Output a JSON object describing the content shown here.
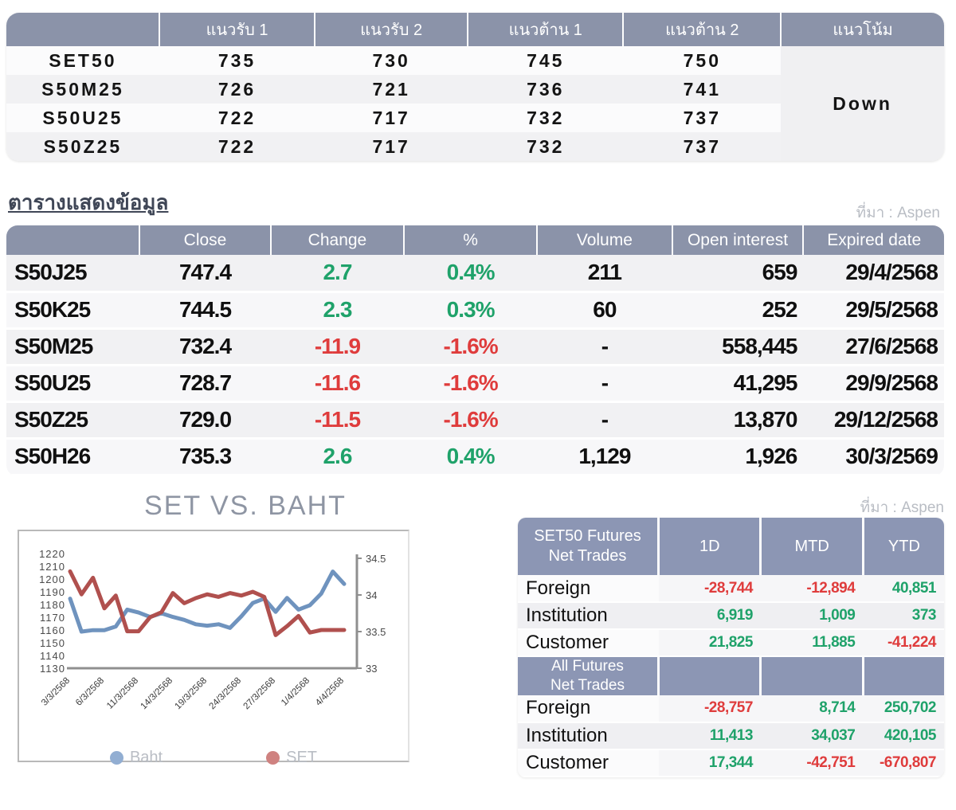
{
  "source_label": "ที่มา : Aspen",
  "colors": {
    "positive": "#1fa26a",
    "negative": "#df3c3c",
    "header_gray": "#8b93a9",
    "header_blue": "#8c96b4"
  },
  "levels_table": {
    "headers": [
      "",
      "แนวรับ 1",
      "แนวรับ 2",
      "แนวต้าน 1",
      "แนวต้าน 2",
      "แนวโน้ม"
    ],
    "trend": "Down",
    "rows": [
      {
        "name": "SET50",
        "s1": "735",
        "s2": "730",
        "r1": "745",
        "r2": "750"
      },
      {
        "name": "S50M25",
        "s1": "726",
        "s2": "721",
        "r1": "736",
        "r2": "741"
      },
      {
        "name": "S50U25",
        "s1": "722",
        "s2": "717",
        "r1": "732",
        "r2": "737"
      },
      {
        "name": "S50Z25",
        "s1": "722",
        "s2": "717",
        "r1": "732",
        "r2": "737"
      }
    ]
  },
  "data_table": {
    "title": "ตารางแสดงข้อมูล",
    "headers": [
      "",
      "Close",
      "Change",
      "%",
      "Volume",
      "Open interest",
      "Expired date"
    ],
    "rows": [
      {
        "name": "S50J25",
        "close": "747.4",
        "change": "2.7",
        "pct": "0.4%",
        "volume": "211",
        "oi": "659",
        "expiry": "29/4/2568"
      },
      {
        "name": "S50K25",
        "close": "744.5",
        "change": "2.3",
        "pct": "0.3%",
        "volume": "60",
        "oi": "252",
        "expiry": "29/5/2568"
      },
      {
        "name": "S50M25",
        "close": "732.4",
        "change": "-11.9",
        "pct": "-1.6%",
        "volume": "-",
        "oi": "558,445",
        "expiry": "27/6/2568"
      },
      {
        "name": "S50U25",
        "close": "728.7",
        "change": "-11.6",
        "pct": "-1.6%",
        "volume": "-",
        "oi": "41,295",
        "expiry": "29/9/2568"
      },
      {
        "name": "S50Z25",
        "close": "729.0",
        "change": "-11.5",
        "pct": "-1.6%",
        "volume": "-",
        "oi": "13,870",
        "expiry": "29/12/2568"
      },
      {
        "name": "S50H26",
        "close": "735.3",
        "change": "2.6",
        "pct": "0.4%",
        "volume": "1,129",
        "oi": "1,926",
        "expiry": "30/3/2569"
      }
    ]
  },
  "chart_data": {
    "type": "line",
    "title": "SET VS. BAHT",
    "x_labels": [
      "3/3/2568",
      "6/3/2568",
      "11/3/2568",
      "14/3/2568",
      "19/3/2568",
      "24/3/2568",
      "27/3/2568",
      "1/4/2568",
      "4/4/2568"
    ],
    "x_label_every_n_points": 3,
    "left_axis": {
      "min": 1130,
      "max": 1220,
      "ticks": [
        1220,
        1210,
        1200,
        1190,
        1180,
        1170,
        1160,
        1150,
        1140,
        1130
      ]
    },
    "right_axis": {
      "min": 33,
      "max": 34.5,
      "ticks": [
        34.5,
        34,
        33.5,
        33
      ]
    },
    "grid": false,
    "legend_position": "bottom",
    "series": [
      {
        "name": "Baht",
        "axis": "right",
        "color": "#6f93be",
        "legend_color": "#92aed2",
        "values": [
          33.95,
          33.5,
          33.52,
          33.52,
          33.57,
          33.8,
          33.76,
          33.7,
          33.75,
          33.7,
          33.66,
          33.6,
          33.58,
          33.6,
          33.55,
          33.71,
          33.89,
          33.95,
          33.77,
          33.96,
          33.8,
          33.86,
          34.02,
          34.32,
          34.15
        ]
      },
      {
        "name": "SET",
        "axis": "left",
        "color": "#b0504e",
        "legend_color": "#cf8280",
        "values": [
          1206,
          1188,
          1201,
          1177,
          1187,
          1159,
          1159,
          1170,
          1174,
          1189,
          1181,
          1185,
          1188,
          1186,
          1189,
          1187,
          1190,
          1186,
          1156,
          1163,
          1171,
          1158,
          1160,
          1160,
          1160
        ]
      }
    ]
  },
  "net_trades_set50": {
    "title_line1": "SET50 Futures",
    "title_line2": "Net Trades",
    "columns": [
      "1D",
      "MTD",
      "YTD"
    ],
    "rows": [
      {
        "name": "Foreign",
        "d1": "-28,744",
        "mtd": "-12,894",
        "ytd": "40,851"
      },
      {
        "name": "Institution",
        "d1": "6,919",
        "mtd": "1,009",
        "ytd": "373"
      },
      {
        "name": "Customer",
        "d1": "21,825",
        "mtd": "11,885",
        "ytd": "-41,224"
      }
    ]
  },
  "net_trades_all": {
    "title_line1": "All Futures",
    "title_line2": "Net Trades",
    "rows": [
      {
        "name": "Foreign",
        "d1": "-28,757",
        "mtd": "8,714",
        "ytd": "250,702"
      },
      {
        "name": "Institution",
        "d1": "11,413",
        "mtd": "34,037",
        "ytd": "420,105"
      },
      {
        "name": "Customer",
        "d1": "17,344",
        "mtd": "-42,751",
        "ytd": "-670,807"
      }
    ]
  }
}
